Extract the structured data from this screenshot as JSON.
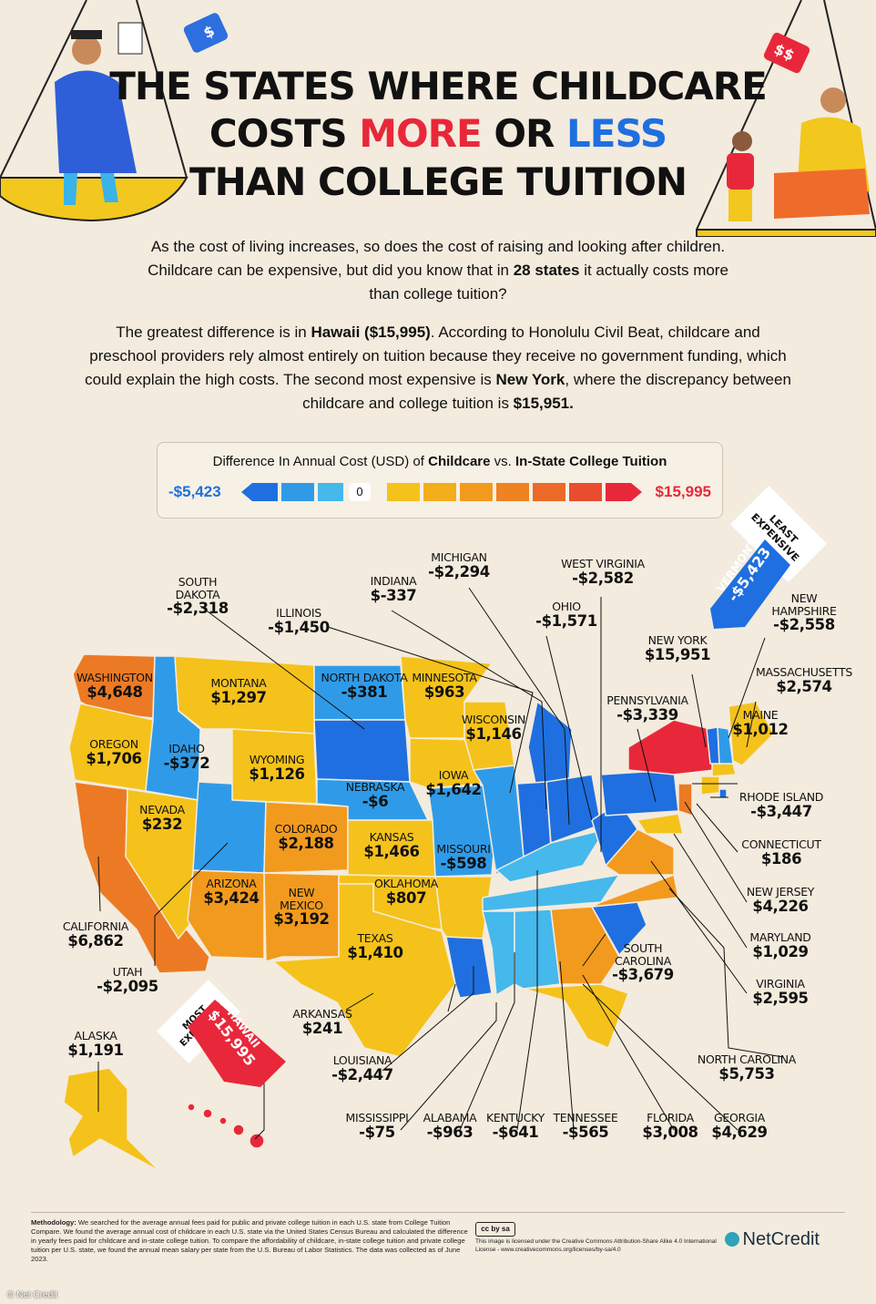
{
  "title": {
    "line1": "THE STATES WHERE CHILDCARE",
    "line2_a": "COSTS ",
    "line2_more": "MORE",
    "line2_or": " OR ",
    "line2_less": "LESS",
    "line3": "THAN COLLEGE TUITION"
  },
  "intro": {
    "p1_a": "As the cost of living increases, so does the cost of raising and looking after children. Childcare can be expensive, but did you know that in ",
    "p1_bold": "28 states",
    "p1_b": " it actually costs more than college tuition?",
    "p2_a": "The greatest difference is in ",
    "p2_bold1": "Hawaii ($15,995)",
    "p2_b": ". According to Honolulu Civil Beat, childcare and preschool providers rely almost entirely on tuition because they receive no government funding, which could explain the high costs. The second most expensive is ",
    "p2_bold2": "New York",
    "p2_c": ", where the discrepancy between childcare and college tuition is ",
    "p2_bold3": "$15,951."
  },
  "legend": {
    "title_a": "Difference In Annual Cost (USD) of ",
    "title_b": "Childcare",
    "title_c": " vs. ",
    "title_d": "In-State College Tuition",
    "min": "-$5,423",
    "zero": "0",
    "max": "$15,995"
  },
  "tags": {
    "vermont_caption": "LEAST EXPENSIVE",
    "vermont_name": "VERMONT",
    "vermont_value": "-$5,423",
    "hawaii_caption": "MOST EXPENSIVE",
    "hawaii_name": "HAWAII",
    "hawaii_value": "$15,995"
  },
  "states": [
    {
      "id": "washington",
      "name": "WASHINGTON",
      "value": "$4,648"
    },
    {
      "id": "oregon",
      "name": "OREGON",
      "value": "$1,706"
    },
    {
      "id": "california",
      "name": "CALIFORNIA",
      "value": "$6,862"
    },
    {
      "id": "nevada",
      "name": "NEVADA",
      "value": "$232"
    },
    {
      "id": "idaho",
      "name": "IDAHO",
      "value": "-$372"
    },
    {
      "id": "montana",
      "name": "MONTANA",
      "value": "$1,297"
    },
    {
      "id": "wyoming",
      "name": "WYOMING",
      "value": "$1,126"
    },
    {
      "id": "utah",
      "name": "UTAH",
      "value": "-$2,095"
    },
    {
      "id": "colorado",
      "name": "COLORADO",
      "value": "$2,188"
    },
    {
      "id": "arizona",
      "name": "ARIZONA",
      "value": "$3,424"
    },
    {
      "id": "new-mexico",
      "name": "NEW MEXICO",
      "value": "$3,192"
    },
    {
      "id": "north-dakota",
      "name": "NORTH DAKOTA",
      "value": "-$381"
    },
    {
      "id": "south-dakota",
      "name": "SOUTH DAKOTA",
      "value": "-$2,318"
    },
    {
      "id": "nebraska",
      "name": "NEBRASKA",
      "value": "-$6"
    },
    {
      "id": "kansas",
      "name": "KANSAS",
      "value": "$1,466"
    },
    {
      "id": "oklahoma",
      "name": "OKLAHOMA",
      "value": "$807"
    },
    {
      "id": "texas",
      "name": "TEXAS",
      "value": "$1,410"
    },
    {
      "id": "minnesota",
      "name": "MINNESOTA",
      "value": "$963"
    },
    {
      "id": "iowa",
      "name": "IOWA",
      "value": "$1,642"
    },
    {
      "id": "missouri",
      "name": "MISSOURI",
      "value": "-$598"
    },
    {
      "id": "arkansas",
      "name": "ARKANSAS",
      "value": "$241"
    },
    {
      "id": "louisiana",
      "name": "LOUISIANA",
      "value": "-$2,447"
    },
    {
      "id": "wisconsin",
      "name": "WISCONSIN",
      "value": "$1,146"
    },
    {
      "id": "illinois",
      "name": "ILLINOIS",
      "value": "-$1,450"
    },
    {
      "id": "michigan",
      "name": "MICHIGAN",
      "value": "-$2,294"
    },
    {
      "id": "indiana",
      "name": "INDIANA",
      "value": "$-337"
    },
    {
      "id": "ohio",
      "name": "OHIO",
      "value": "-$1,571"
    },
    {
      "id": "kentucky",
      "name": "KENTUCKY",
      "value": "-$641"
    },
    {
      "id": "tennessee",
      "name": "TENNESSEE",
      "value": "-$565"
    },
    {
      "id": "mississippi",
      "name": "MISSISSIPPI",
      "value": "-$75"
    },
    {
      "id": "alabama",
      "name": "ALABAMA",
      "value": "-$963"
    },
    {
      "id": "georgia",
      "name": "GEORGIA",
      "value": "$4,629"
    },
    {
      "id": "florida",
      "name": "FLORIDA",
      "value": "$3,008"
    },
    {
      "id": "south-carolina",
      "name": "SOUTH CAROLINA",
      "value": "-$3,679"
    },
    {
      "id": "north-carolina",
      "name": "NORTH CAROLINA",
      "value": "$5,753"
    },
    {
      "id": "virginia",
      "name": "VIRGINIA",
      "value": "$2,595"
    },
    {
      "id": "west-virginia",
      "name": "WEST VIRGINIA",
      "value": "-$2,582"
    },
    {
      "id": "pennsylvania",
      "name": "PENNSYLVANIA",
      "value": "-$3,339"
    },
    {
      "id": "new-york",
      "name": "NEW YORK",
      "value": "$15,951"
    },
    {
      "id": "maryland",
      "name": "MARYLAND",
      "value": "$1,029"
    },
    {
      "id": "new-jersey",
      "name": "NEW JERSEY",
      "value": "$4,226"
    },
    {
      "id": "connecticut",
      "name": "CONNECTICUT",
      "value": "$186"
    },
    {
      "id": "rhode-island",
      "name": "RHODE ISLAND",
      "value": "-$3,447"
    },
    {
      "id": "massachusetts",
      "name": "MASSACHUSETTS",
      "value": "$2,574"
    },
    {
      "id": "new-hampshire",
      "name": "NEW HAMPSHIRE",
      "value": "-$2,558"
    },
    {
      "id": "maine",
      "name": "MAINE",
      "value": "$1,012"
    },
    {
      "id": "alaska",
      "name": "ALASKA",
      "value": "$1,191"
    }
  ],
  "footer": {
    "method_label": "Methodology:",
    "method_text": " We searched for the average annual fees paid for public and private college tuition in each U.S. state from College Tuition Compare. We found the average annual cost of childcare in each U.S. state via the United States Census Bureau and calculated the difference in yearly fees paid for childcare and in-state college tuition. To compare the affordability of childcare, in-state college tuition and private college tuition per U.S. state, we found the annual mean salary per state from the U.S. Bureau of Labor Statistics. The data was collected as of June 2023.",
    "license": "This image is licensed under the Creative Commons Attribution-Share Alike 4.0 International License - www.creativecommons.org/licenses/by-sa/4.0",
    "brand": "NetCredit",
    "credit": "© Net Credit"
  },
  "colors": {
    "blue_dark": "#1f6fe0",
    "blue_mid": "#2f9be8",
    "blue_light": "#45b8ec",
    "yellow": "#f5c21b",
    "orange": "#f29a1e",
    "orange_dark": "#ec7a24",
    "red": "#e8283a",
    "background": "#f3ebdd"
  }
}
